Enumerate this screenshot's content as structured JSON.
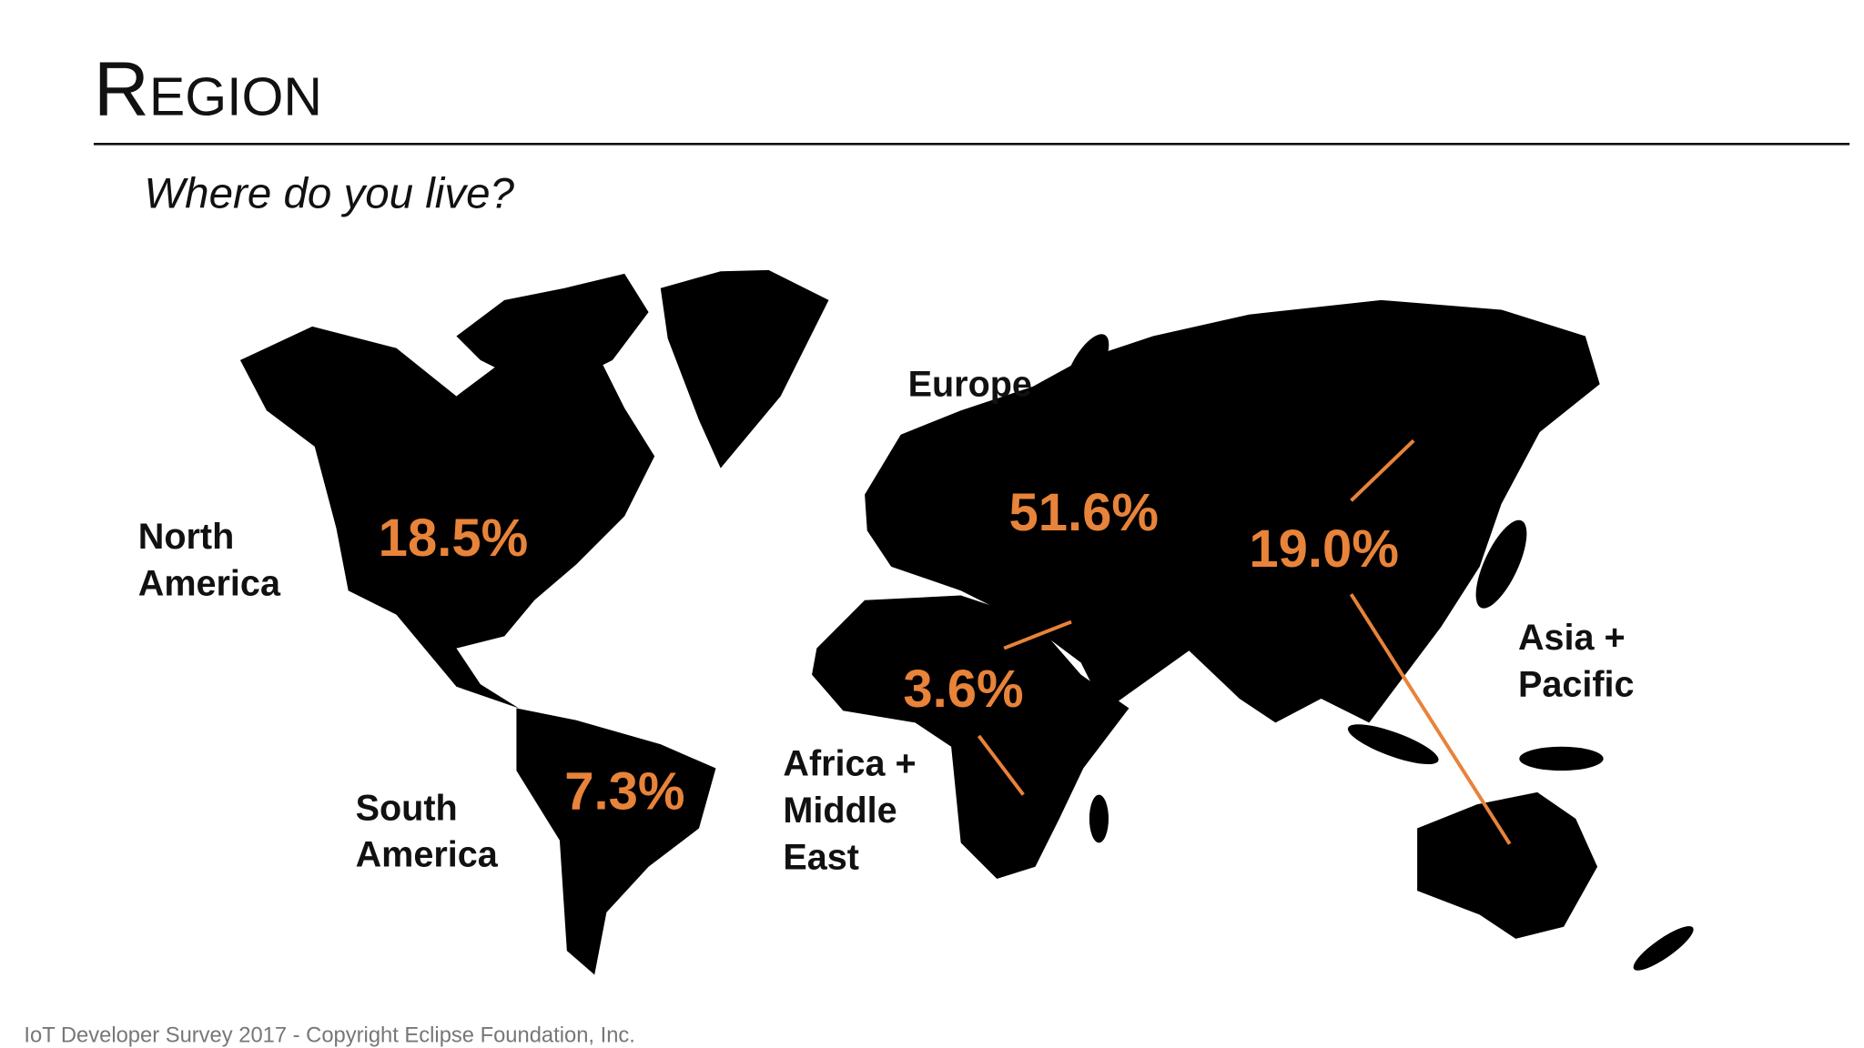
{
  "header": {
    "title": "Region",
    "subtitle": "Where do you live?"
  },
  "regions": [
    {
      "name_lines": [
        "North",
        "America"
      ],
      "share": "18.5%"
    },
    {
      "name_lines": [
        "South",
        "America"
      ],
      "share": "7.3%"
    },
    {
      "name_lines": [
        "Europe"
      ],
      "share": "51.6%"
    },
    {
      "name_lines": [
        "Africa +",
        "Middle",
        "East"
      ],
      "share": "3.6%"
    },
    {
      "name_lines": [
        "Asia +",
        "Pacific"
      ],
      "share": "19.0%"
    }
  ],
  "footer": "IoT Developer Survey 2017 - Copyright Eclipse Foundation, Inc."
}
